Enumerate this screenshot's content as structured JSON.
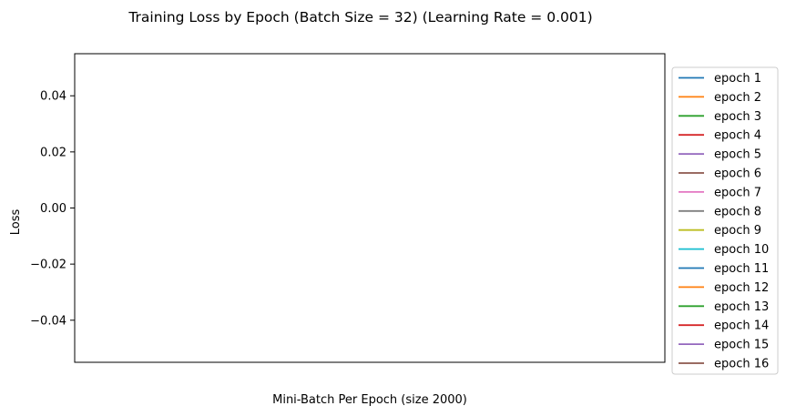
{
  "chart_data": {
    "type": "line",
    "title": "Training Loss by Epoch (Batch Size = 32) (Learning Rate = 0.001)",
    "xlabel": "Mini-Batch Per Epoch (size 2000)",
    "ylabel": "Loss",
    "ylim": [
      -0.055,
      0.055
    ],
    "yticks": [
      0.04,
      0.02,
      0.0,
      -0.02,
      -0.04
    ],
    "ytick_labels": [
      "0.04",
      "0.02",
      "0.00",
      "−0.02",
      "−0.04"
    ],
    "xticks": [],
    "grid": false,
    "legend_position": "outside-right",
    "series": [
      {
        "name": "epoch 1",
        "color": "#1f77b4",
        "x": [],
        "y": []
      },
      {
        "name": "epoch 2",
        "color": "#ff7f0e",
        "x": [],
        "y": []
      },
      {
        "name": "epoch 3",
        "color": "#2ca02c",
        "x": [],
        "y": []
      },
      {
        "name": "epoch 4",
        "color": "#d62728",
        "x": [],
        "y": []
      },
      {
        "name": "epoch 5",
        "color": "#9467bd",
        "x": [],
        "y": []
      },
      {
        "name": "epoch 6",
        "color": "#8c564b",
        "x": [],
        "y": []
      },
      {
        "name": "epoch 7",
        "color": "#e377c2",
        "x": [],
        "y": []
      },
      {
        "name": "epoch 8",
        "color": "#7f7f7f",
        "x": [],
        "y": []
      },
      {
        "name": "epoch 9",
        "color": "#bcbd22",
        "x": [],
        "y": []
      },
      {
        "name": "epoch 10",
        "color": "#17becf",
        "x": [],
        "y": []
      },
      {
        "name": "epoch 11",
        "color": "#1f77b4",
        "x": [],
        "y": []
      },
      {
        "name": "epoch 12",
        "color": "#ff7f0e",
        "x": [],
        "y": []
      },
      {
        "name": "epoch 13",
        "color": "#2ca02c",
        "x": [],
        "y": []
      },
      {
        "name": "epoch 14",
        "color": "#d62728",
        "x": [],
        "y": []
      },
      {
        "name": "epoch 15",
        "color": "#9467bd",
        "x": [],
        "y": []
      },
      {
        "name": "epoch 16",
        "color": "#8c564b",
        "x": [],
        "y": []
      }
    ]
  }
}
